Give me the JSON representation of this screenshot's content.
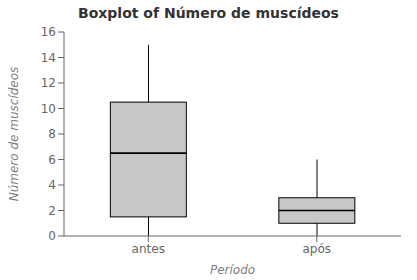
{
  "chart_data": {
    "type": "box",
    "title": "Boxplot of Número de muscídeos",
    "xlabel": "Período",
    "ylabel": "Número de muscídeos",
    "categories": [
      "antes",
      "após"
    ],
    "boxes": [
      {
        "q1": 1.5,
        "median": 6.5,
        "q3": 10.5,
        "whisker_low": 0.0,
        "whisker_high": 15.0
      },
      {
        "q1": 1.0,
        "median": 2.0,
        "q3": 3.0,
        "whisker_low": 0.0,
        "whisker_high": 6.0
      }
    ],
    "ylim": [
      0,
      16
    ],
    "yticks": [
      0,
      2,
      4,
      6,
      8,
      10,
      12,
      14,
      16
    ],
    "color": "#c8c8c8",
    "grid": false
  }
}
